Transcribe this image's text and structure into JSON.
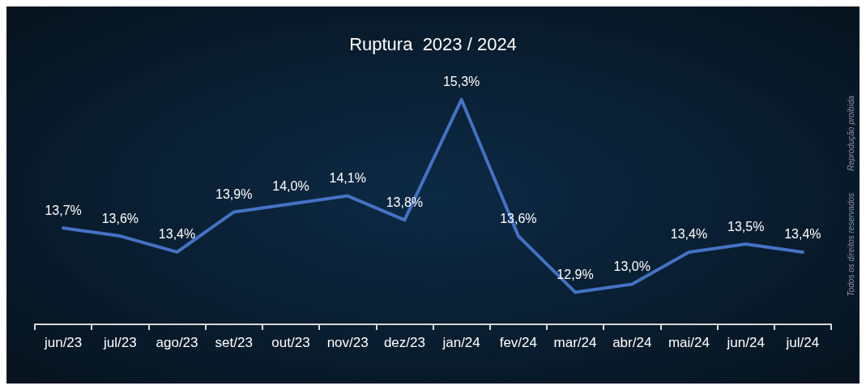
{
  "chart_data": {
    "type": "line",
    "title": "Ruptura  2023 / 2024",
    "categories": [
      "jun/23",
      "jul/23",
      "ago/23",
      "set/23",
      "out/23",
      "nov/23",
      "dez/23",
      "jan/24",
      "fev/24",
      "mar/24",
      "abr/24",
      "mai/24",
      "jun/24",
      "jul/24"
    ],
    "series": [
      {
        "color": "#4472c4",
        "values": [
          13.7,
          13.6,
          13.4,
          13.9,
          14.0,
          14.1,
          13.8,
          15.3,
          13.6,
          12.9,
          13.0,
          13.4,
          13.5,
          13.4
        ],
        "value_labels": [
          "13,7%",
          "13,6%",
          "13,4%",
          "13,9%",
          "14,0%",
          "14,1%",
          "13,8%",
          "15,3%",
          "13,6%",
          "12,9%",
          "13,0%",
          "13,4%",
          "13,5%",
          "13,4%"
        ]
      }
    ],
    "annotations": [
      "Reprodução proibida",
      "Todos os direitos reservados"
    ],
    "grid": false,
    "marker": "none",
    "line_style": "solid"
  }
}
